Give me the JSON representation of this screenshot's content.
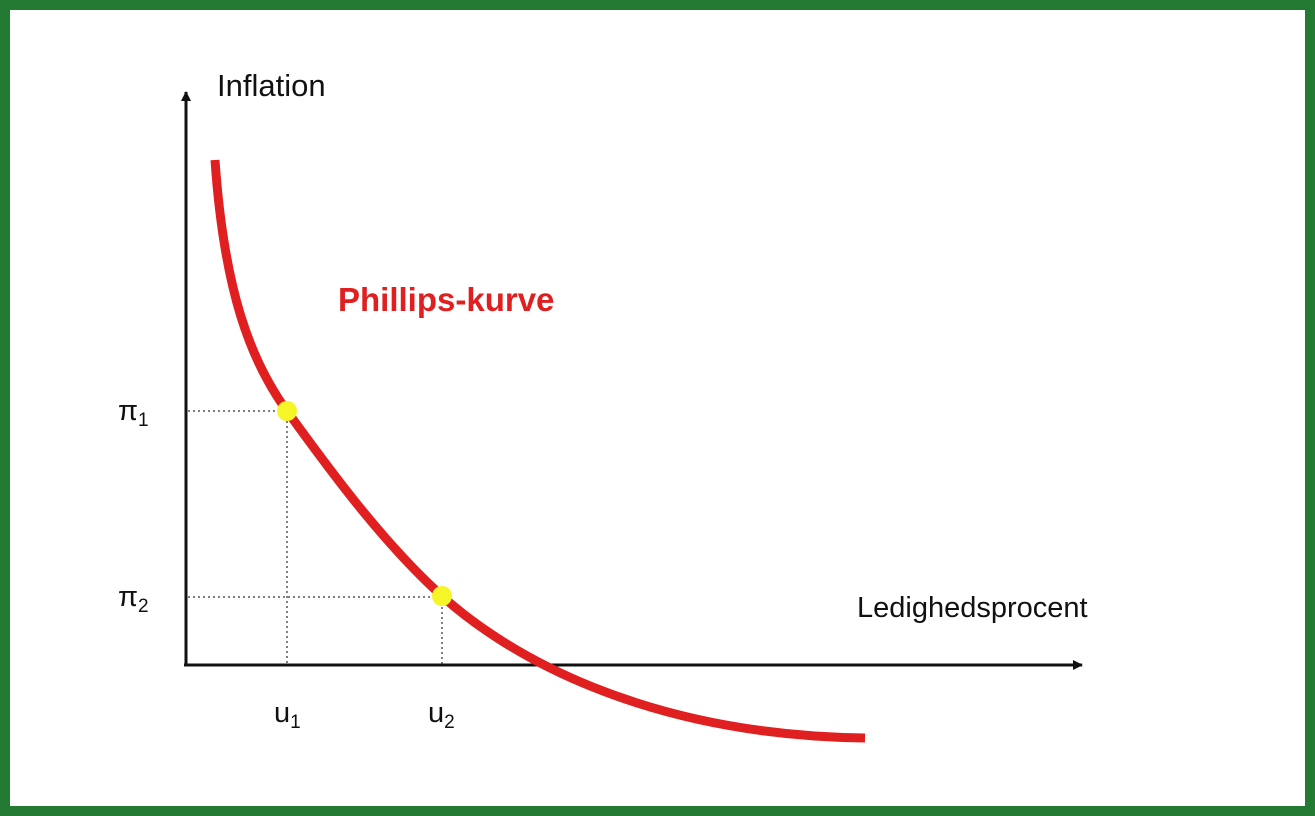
{
  "y_axis_label": "Inflation",
  "x_axis_label": "Ledighedsprocent",
  "curve_label": "Phillips-kurve",
  "y_markers": [
    {
      "base": "π",
      "sub": "1"
    },
    {
      "base": "π",
      "sub": "2"
    }
  ],
  "x_markers": [
    {
      "base": "u",
      "sub": "1"
    },
    {
      "base": "u",
      "sub": "2"
    }
  ]
}
